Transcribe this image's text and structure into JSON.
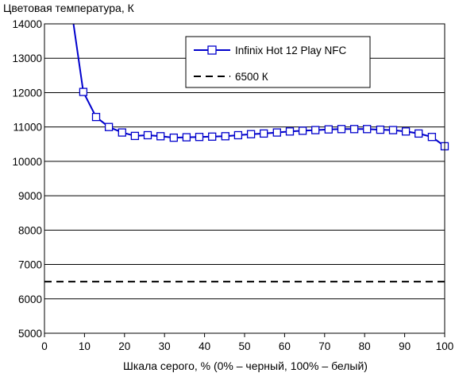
{
  "chart_data": {
    "type": "line",
    "ylabel": "Цветовая температура, К",
    "xlabel": "Шкала серого, % (0% – черный, 100% – белый)",
    "xlim": [
      0,
      100
    ],
    "ylim": [
      5000,
      14000
    ],
    "x_ticks": [
      0,
      10,
      20,
      30,
      40,
      50,
      60,
      70,
      80,
      90,
      100
    ],
    "y_ticks": [
      5000,
      6000,
      7000,
      8000,
      9000,
      10000,
      11000,
      12000,
      13000,
      14000
    ],
    "x_tick_labels": [
      "0",
      "10",
      "20",
      "30",
      "40",
      "50",
      "60",
      "70",
      "80",
      "90",
      "100"
    ],
    "y_tick_labels": [
      "5000",
      "6000",
      "7000",
      "8000",
      "9000",
      "10000",
      "11000",
      "12000",
      "13000",
      "14000"
    ],
    "grid": "horizontal",
    "legend_position": "top-right",
    "series": [
      {
        "name": "Infinix Hot 12 Play NFC",
        "color": "#0000cc",
        "marker": "square",
        "lead_in": {
          "x": 7,
          "y": 14200
        },
        "x": [
          9.7,
          12.9,
          16.1,
          19.4,
          22.6,
          25.8,
          29.0,
          32.3,
          35.5,
          38.7,
          41.9,
          45.2,
          48.4,
          51.6,
          54.8,
          58.1,
          61.3,
          64.5,
          67.7,
          71.0,
          74.2,
          77.4,
          80.6,
          83.9,
          87.1,
          90.3,
          93.5,
          96.8,
          100
        ],
        "y": [
          12020,
          11290,
          11000,
          10840,
          10740,
          10760,
          10730,
          10690,
          10700,
          10710,
          10720,
          10730,
          10760,
          10790,
          10810,
          10840,
          10870,
          10890,
          10910,
          10930,
          10940,
          10940,
          10940,
          10920,
          10910,
          10870,
          10810,
          10710,
          10440
        ]
      },
      {
        "name": "6500 К",
        "color": "#000000",
        "dash": "dashed",
        "x": [
          0,
          100
        ],
        "y": [
          6500,
          6500
        ]
      }
    ]
  }
}
